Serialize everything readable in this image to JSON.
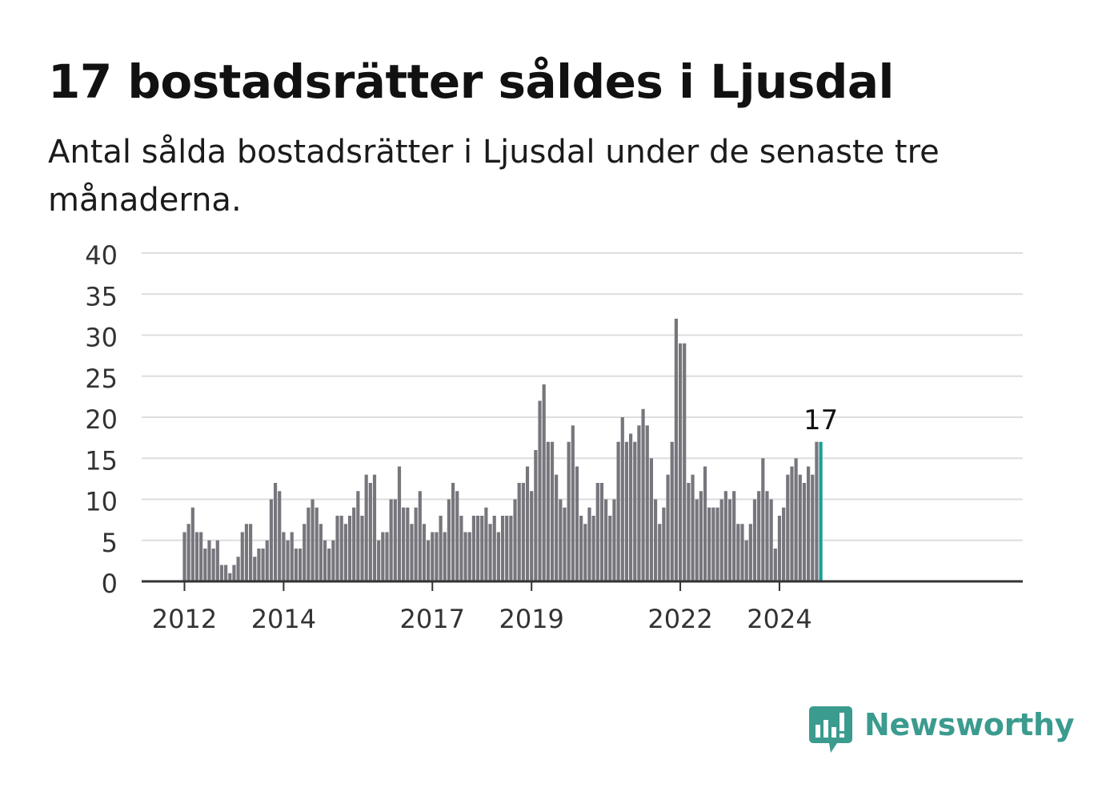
{
  "title": "17 bostadsrätter såldes i Ljusdal",
  "subtitle": "Antal sålda bostadsrätter i Ljusdal under de senaste tre månaderna.",
  "brand": {
    "name": "Newsworthy",
    "color": "#3b9b8f",
    "icon": "newsworthy-bar-chart-logo-icon"
  },
  "colors": {
    "bar": "#77767d",
    "highlight": "#1a9e96",
    "grid": "#dddddd",
    "axis": "#333333",
    "text": "#333333"
  },
  "chart_data": {
    "type": "bar",
    "title": "17 bostadsrätter såldes i Ljusdal",
    "xlabel": "",
    "ylabel": "",
    "ylim": [
      0,
      40
    ],
    "yticks": [
      "0",
      "5",
      "10",
      "15",
      "20",
      "25",
      "30",
      "35",
      "40"
    ],
    "grid": true,
    "start": {
      "year": 2012,
      "month": 1
    },
    "xtick_labels": [
      "2012",
      "2014",
      "2017",
      "2019",
      "2022",
      "2024"
    ],
    "highlight_label": "17",
    "values": [
      6,
      7,
      9,
      6,
      6,
      4,
      5,
      4,
      5,
      2,
      2,
      1,
      2,
      3,
      6,
      7,
      7,
      3,
      4,
      4,
      5,
      10,
      12,
      11,
      6,
      5,
      6,
      4,
      4,
      7,
      9,
      10,
      9,
      7,
      5,
      4,
      5,
      8,
      8,
      7,
      8,
      9,
      11,
      8,
      13,
      12,
      13,
      5,
      6,
      6,
      10,
      10,
      14,
      9,
      9,
      7,
      9,
      11,
      7,
      5,
      6,
      6,
      8,
      6,
      10,
      12,
      11,
      8,
      6,
      6,
      8,
      8,
      8,
      9,
      7,
      8,
      6,
      8,
      8,
      8,
      10,
      12,
      12,
      14,
      11,
      16,
      22,
      24,
      17,
      17,
      13,
      10,
      9,
      17,
      19,
      14,
      8,
      7,
      9,
      8,
      12,
      12,
      10,
      8,
      10,
      17,
      20,
      17,
      18,
      17,
      19,
      21,
      19,
      15,
      10,
      7,
      9,
      13,
      17,
      32,
      29,
      29,
      12,
      13,
      10,
      11,
      14,
      9,
      9,
      9,
      10,
      11,
      10,
      11,
      7,
      7,
      5,
      7,
      10,
      11,
      15,
      11,
      10,
      4,
      8,
      9,
      13,
      14,
      15,
      13,
      12,
      14,
      13,
      17,
      17
    ]
  }
}
